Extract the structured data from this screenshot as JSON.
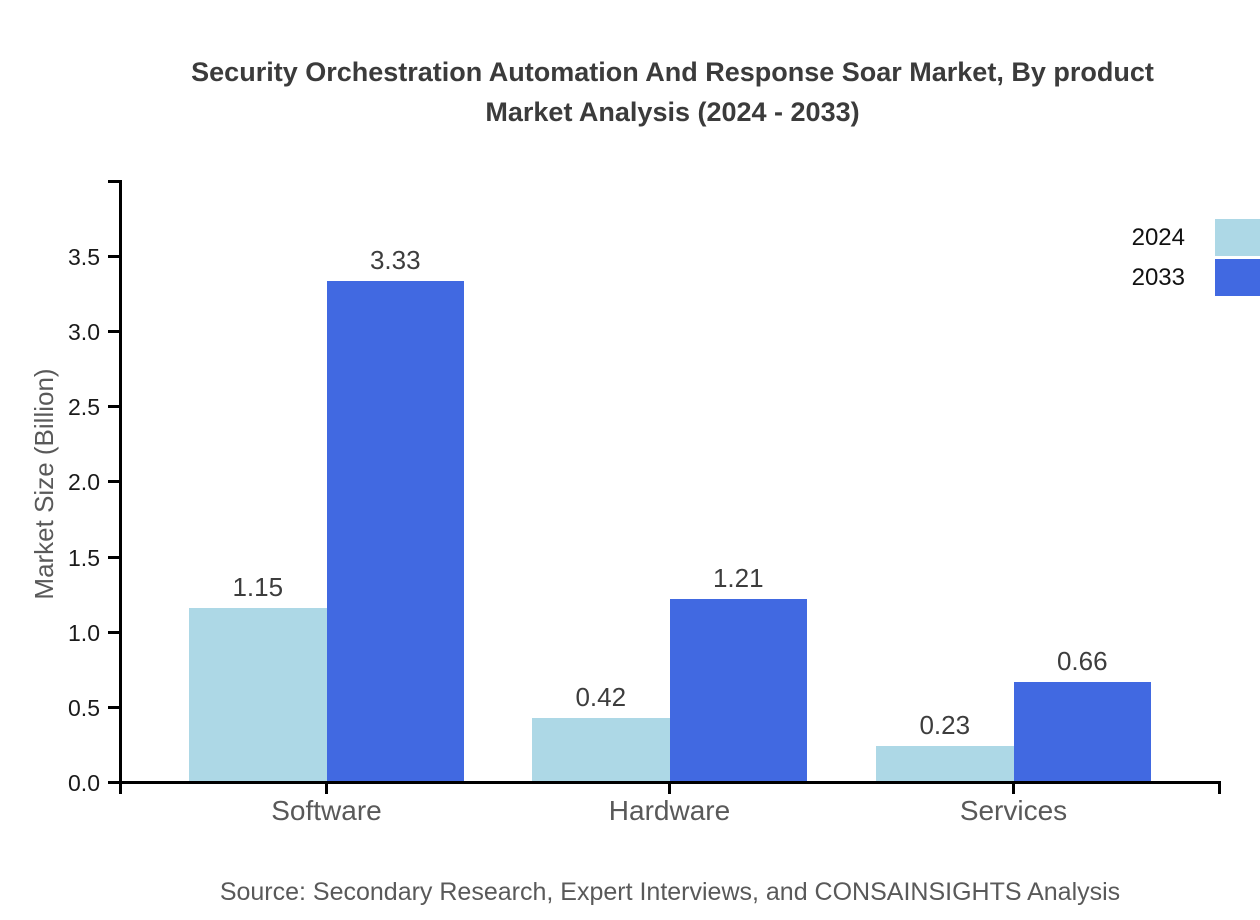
{
  "title": {
    "line1": "Security Orchestration Automation And Response Soar Market, By product",
    "line2": "Market Analysis (2024 - 2033)"
  },
  "source": "Source: Secondary Research, Expert Interviews, and CONSAINSIGHTS Analysis",
  "chart_data": {
    "type": "bar",
    "title": "Security Orchestration Automation And Response Soar Market, By product Market Analysis (2024 - 2033)",
    "categories": [
      "Software",
      "Hardware",
      "Services"
    ],
    "series": [
      {
        "name": "2024",
        "color": "#add8e6",
        "values": [
          1.15,
          0.42,
          0.23
        ]
      },
      {
        "name": "2033",
        "color": "#4169e1",
        "values": [
          3.33,
          1.21,
          0.66
        ]
      }
    ],
    "xlabel": "",
    "ylabel": "Market Size (Billion)",
    "ylim": [
      0,
      4.0
    ],
    "yticks": [
      0.0,
      0.5,
      1.0,
      1.5,
      2.0,
      2.5,
      3.0,
      3.5
    ],
    "grid": false,
    "legend_position": "top-right-edge",
    "axis_color": "#000000",
    "title_color": "#3b3b3b",
    "value_label_color": "#3d3d3d",
    "muted_text_color": "#595959"
  }
}
